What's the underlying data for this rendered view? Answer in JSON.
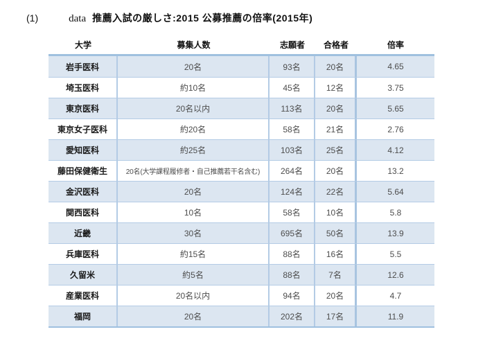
{
  "title": {
    "index": "(1)",
    "data_label": "data",
    "text": "推薦入試の厳しさ:2015 公募推薦の倍率(2015年)"
  },
  "table": {
    "headers": [
      "大学",
      "募集人数",
      "志願者",
      "合格者",
      "倍率"
    ],
    "rows": [
      {
        "university": "岩手医科",
        "capacity": "20名",
        "applicants": "93名",
        "admitted": "20名",
        "ratio": "4.65"
      },
      {
        "university": "埼玉医科",
        "capacity": "約10名",
        "applicants": "45名",
        "admitted": "12名",
        "ratio": "3.75"
      },
      {
        "university": "東京医科",
        "capacity": "20名以内",
        "applicants": "113名",
        "admitted": "20名",
        "ratio": "5.65"
      },
      {
        "university": "東京女子医科",
        "capacity": "約20名",
        "applicants": "58名",
        "admitted": "21名",
        "ratio": "2.76"
      },
      {
        "university": "愛知医科",
        "capacity": "約25名",
        "applicants": "103名",
        "admitted": "25名",
        "ratio": "4.12"
      },
      {
        "university": "藤田保健衛生",
        "capacity": "20名(大学課程履修者・自己推薦若干名含む)",
        "applicants": "264名",
        "admitted": "20名",
        "ratio": "13.2"
      },
      {
        "university": "金沢医科",
        "capacity": "20名",
        "applicants": "124名",
        "admitted": "22名",
        "ratio": "5.64"
      },
      {
        "university": "関西医科",
        "capacity": "10名",
        "applicants": "58名",
        "admitted": "10名",
        "ratio": "5.8"
      },
      {
        "university": "近畿",
        "capacity": "30名",
        "applicants": "695名",
        "admitted": "50名",
        "ratio": "13.9"
      },
      {
        "university": "兵庫医科",
        "capacity": "約15名",
        "applicants": "88名",
        "admitted": "16名",
        "ratio": "5.5"
      },
      {
        "university": "久留米",
        "capacity": "約5名",
        "applicants": "88名",
        "admitted": "7名",
        "ratio": "12.6"
      },
      {
        "university": "産業医科",
        "capacity": "20名以内",
        "applicants": "94名",
        "admitted": "20名",
        "ratio": "4.7"
      },
      {
        "university": "福岡",
        "capacity": "20名",
        "applicants": "202名",
        "admitted": "17名",
        "ratio": "11.9"
      }
    ]
  },
  "colors": {
    "row_stripe": "#dce6f1",
    "row_alt": "#ffffff",
    "grid_line": "#b3cbe5",
    "table_frame": "#9fc0df",
    "heading_text": "#111111",
    "cell_text": "#4d4d4d"
  }
}
